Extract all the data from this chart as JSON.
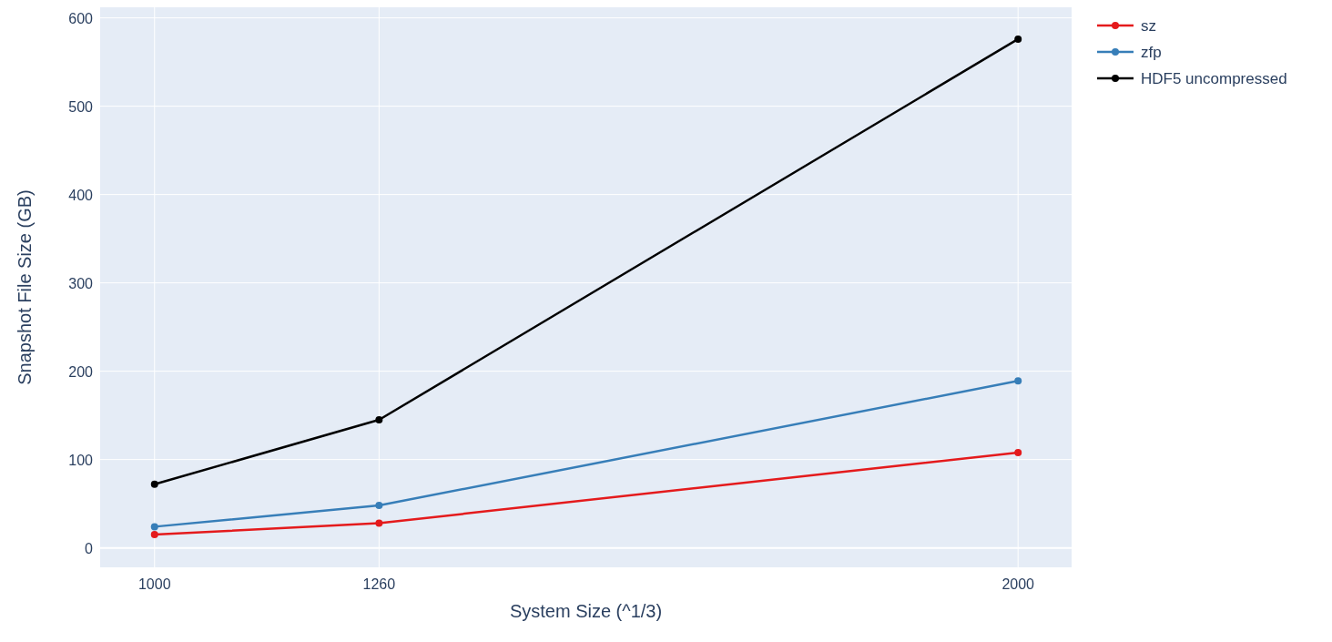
{
  "chart_data": {
    "type": "line",
    "xlabel": "System Size (^1/3)",
    "ylabel": "Snapshot File Size (GB)",
    "x": [
      1000,
      1260,
      2000
    ],
    "series": [
      {
        "name": "sz",
        "color": "#e41a1c",
        "values": [
          15,
          28,
          108
        ]
      },
      {
        "name": "zfp",
        "color": "#377eb8",
        "values": [
          24,
          48,
          189
        ]
      },
      {
        "name": "HDF5 uncompressed",
        "color": "#000000",
        "values": [
          72,
          145,
          576
        ]
      }
    ],
    "xlim": [
      937,
      2062
    ],
    "ylim": [
      -22,
      612
    ],
    "xticks": [
      1000,
      1260,
      2000
    ],
    "yticks": [
      0,
      100,
      200,
      300,
      400,
      500,
      600
    ],
    "grid": true,
    "legend": "top right",
    "marker": "circle",
    "line_style": "solid"
  }
}
